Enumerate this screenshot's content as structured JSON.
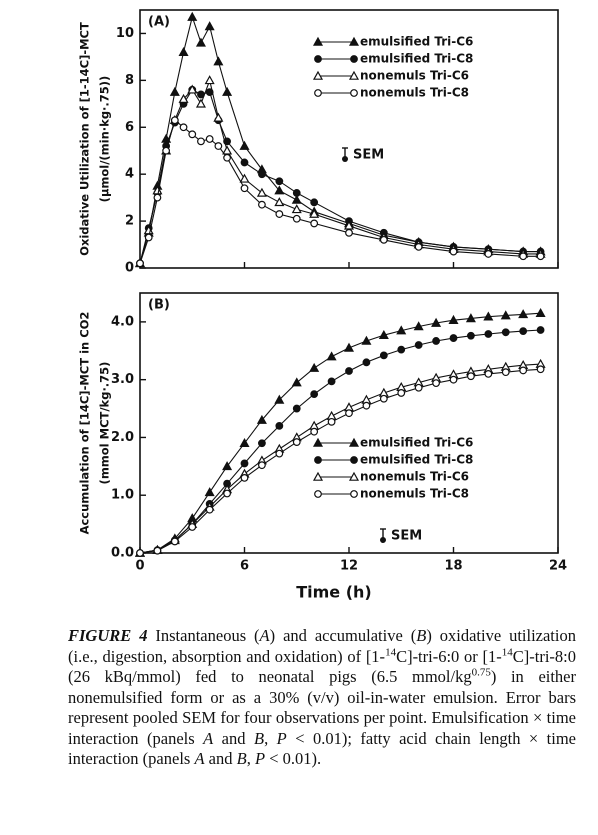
{
  "chart_data": [
    {
      "type": "line",
      "panel_label": "(A)",
      "ylabel": [
        "Oxidative Utilization of [1-14C]-MCT",
        "(μmol/(min·kg·.75))"
      ],
      "x": [
        0,
        0.5,
        1,
        1.5,
        2,
        2.5,
        3,
        3.5,
        4,
        4.5,
        5,
        6,
        7,
        8,
        9,
        10,
        12,
        14,
        16,
        18,
        20,
        22,
        23
      ],
      "xlim": [
        0,
        24
      ],
      "xticks": [
        0,
        6,
        12,
        18,
        24
      ],
      "xtick_labels": false,
      "ylim": [
        0,
        11
      ],
      "yticks": [
        0,
        2,
        4,
        6,
        8,
        10
      ],
      "legend": "upper right",
      "annotation": "SEM",
      "series": [
        {
          "name": "emulsified Tri-C6",
          "color": "#111111",
          "marker": "triangle",
          "filled": true,
          "values": [
            0.2,
            1.5,
            3.5,
            5.5,
            7.5,
            9.2,
            10.7,
            9.6,
            10.3,
            8.8,
            7.5,
            5.2,
            4.2,
            3.3,
            2.9,
            2.4,
            1.9,
            1.4,
            1.1,
            0.9,
            0.8,
            0.7,
            0.7
          ]
        },
        {
          "name": "emulsified Tri-C8",
          "color": "#111111",
          "marker": "circle",
          "filled": true,
          "values": [
            0.2,
            1.7,
            3.2,
            5.2,
            6.2,
            7.0,
            7.6,
            7.4,
            7.5,
            6.3,
            5.4,
            4.5,
            4.0,
            3.7,
            3.2,
            2.8,
            2.0,
            1.5,
            1.1,
            0.9,
            0.8,
            0.7,
            0.7
          ]
        },
        {
          "name": "nonemuls Tri-C6",
          "color": "#111111",
          "marker": "triangle",
          "filled": false,
          "values": [
            0.2,
            1.6,
            3.3,
            5.0,
            6.3,
            7.2,
            7.6,
            7.0,
            8.0,
            6.4,
            5.0,
            3.8,
            3.2,
            2.8,
            2.5,
            2.3,
            1.8,
            1.3,
            1.0,
            0.8,
            0.7,
            0.6,
            0.6
          ]
        },
        {
          "name": "nonemuls Tri-C8",
          "color": "#111111",
          "marker": "circle",
          "filled": false,
          "values": [
            0.2,
            1.3,
            3.0,
            5.0,
            6.3,
            6.0,
            5.7,
            5.4,
            5.5,
            5.2,
            4.7,
            3.4,
            2.7,
            2.3,
            2.1,
            1.9,
            1.5,
            1.2,
            0.9,
            0.7,
            0.6,
            0.5,
            0.5
          ]
        }
      ]
    },
    {
      "type": "line",
      "panel_label": "(B)",
      "ylabel": [
        "Accumulation of [14C]-MCT in CO2",
        "(mmol MCT/kg·.75)"
      ],
      "xlabel": "Time (h)",
      "x": [
        0,
        1,
        2,
        3,
        4,
        5,
        6,
        7,
        8,
        9,
        10,
        11,
        12,
        13,
        14,
        15,
        16,
        17,
        18,
        19,
        20,
        21,
        22,
        23
      ],
      "xlim": [
        0,
        24
      ],
      "xticks": [
        0,
        6,
        12,
        18,
        24
      ],
      "xtick_labels": true,
      "ylim": [
        0,
        4.5
      ],
      "yticks": [
        {
          "value": 0,
          "label": "0.0"
        },
        {
          "value": 1,
          "label": "1.0"
        },
        {
          "value": 2,
          "label": "2.0"
        },
        {
          "value": 3,
          "label": "3.0"
        },
        {
          "value": 4,
          "label": "4.0"
        }
      ],
      "legend": "lower right",
      "annotation": "SEM",
      "series": [
        {
          "name": "emulsified Tri-C6",
          "color": "#111111",
          "marker": "triangle",
          "filled": true,
          "values": [
            0,
            0.05,
            0.25,
            0.6,
            1.05,
            1.5,
            1.9,
            2.3,
            2.65,
            2.95,
            3.2,
            3.4,
            3.55,
            3.67,
            3.77,
            3.85,
            3.92,
            3.98,
            4.03,
            4.06,
            4.09,
            4.11,
            4.13,
            4.15
          ]
        },
        {
          "name": "emulsified Tri-C8",
          "color": "#111111",
          "marker": "circle",
          "filled": true,
          "values": [
            0,
            0.05,
            0.22,
            0.5,
            0.85,
            1.2,
            1.55,
            1.9,
            2.2,
            2.5,
            2.75,
            2.97,
            3.15,
            3.3,
            3.42,
            3.52,
            3.6,
            3.67,
            3.72,
            3.76,
            3.79,
            3.82,
            3.84,
            3.86
          ]
        },
        {
          "name": "nonemuls Tri-C6",
          "color": "#111111",
          "marker": "triangle",
          "filled": false,
          "values": [
            0,
            0.05,
            0.22,
            0.5,
            0.8,
            1.1,
            1.37,
            1.6,
            1.8,
            2.0,
            2.2,
            2.37,
            2.52,
            2.65,
            2.77,
            2.87,
            2.95,
            3.03,
            3.09,
            3.14,
            3.18,
            3.22,
            3.25,
            3.27
          ]
        },
        {
          "name": "nonemuls Tri-C8",
          "color": "#111111",
          "marker": "circle",
          "filled": false,
          "values": [
            0,
            0.04,
            0.2,
            0.45,
            0.75,
            1.03,
            1.3,
            1.52,
            1.72,
            1.92,
            2.1,
            2.27,
            2.42,
            2.55,
            2.67,
            2.77,
            2.86,
            2.94,
            3.0,
            3.06,
            3.1,
            3.13,
            3.16,
            3.18
          ]
        }
      ]
    }
  ],
  "caption": {
    "segments": [
      {
        "text": "FIGURE 4",
        "style": "label"
      },
      {
        "text": " Instantaneous (",
        "style": "normal"
      },
      {
        "text": "A",
        "style": "italic"
      },
      {
        "text": ") and accumulative (",
        "style": "normal"
      },
      {
        "text": "B",
        "style": "italic"
      },
      {
        "text": ") oxidative utilization (i.e., digestion, absorption and oxidation) of [1-",
        "style": "normal"
      },
      {
        "text": "14",
        "style": "sup"
      },
      {
        "text": "C]-tri-6:0 or [1-",
        "style": "normal"
      },
      {
        "text": "14",
        "style": "sup"
      },
      {
        "text": "C]-tri-8:0 (26 kBq/mmol) fed to neonatal pigs (6.5 mmol/kg",
        "style": "normal"
      },
      {
        "text": "0.75",
        "style": "sup"
      },
      {
        "text": ") in either nonemulsified form or as a 30% (v/v) oil-in-water emulsion. Error bars represent pooled SEM for four observations per point. Emulsification × time interaction (panels ",
        "style": "normal"
      },
      {
        "text": "A",
        "style": "italic"
      },
      {
        "text": " and ",
        "style": "normal"
      },
      {
        "text": "B",
        "style": "italic"
      },
      {
        "text": ", ",
        "style": "normal"
      },
      {
        "text": "P",
        "style": "italic"
      },
      {
        "text": " < 0.01); fatty acid chain length × time interaction (panels ",
        "style": "normal"
      },
      {
        "text": "A",
        "style": "italic"
      },
      {
        "text": " and ",
        "style": "normal"
      },
      {
        "text": "B",
        "style": "italic"
      },
      {
        "text": ", ",
        "style": "normal"
      },
      {
        "text": "P",
        "style": "italic"
      },
      {
        "text": " < 0.01).",
        "style": "normal"
      }
    ]
  }
}
